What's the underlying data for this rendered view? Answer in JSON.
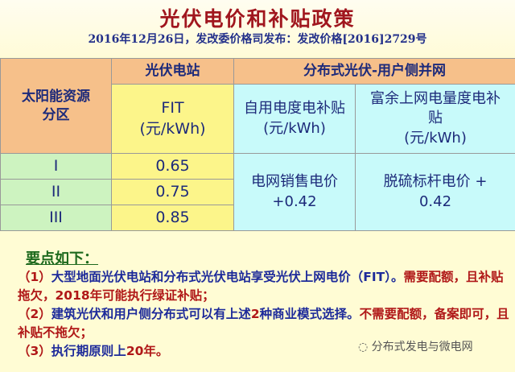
{
  "title": "光伏电价和补贴政策",
  "subtitle": "2016年12月26日，发改委价格司发布：发改价格[2016]2729号",
  "table": {
    "zone_header": "太阳能资源分区",
    "pv_station_header": "光伏电站",
    "distributed_header": "分布式光伏-用户侧并网",
    "fit_header": "FIT",
    "unit": "(元/kWh)",
    "self_use_header": "自用电度电补贴",
    "surplus_header": "富余上网电量度电补贴",
    "rows": [
      {
        "zone": "I",
        "fit": "0.65"
      },
      {
        "zone": "II",
        "fit": "0.75"
      },
      {
        "zone": "III",
        "fit": "0.85"
      }
    ],
    "self_use_value": "电网销售电价+0.42",
    "surplus_value": "脱硫标杆电价 + 0.42"
  },
  "notes": {
    "heading": "要点如下：",
    "n1_num": "（1）",
    "n1_a": "大型地面光伏电站和分布式光伏电站享受光伏上网电价（FIT）。",
    "n1_b": "需要配额，且补贴拖欠，2018年可能执行绿证补贴；",
    "n2_num": "（2）",
    "n2_a": "建筑光伏和用户侧分布式可以有上述",
    "n2_num2": "2",
    "n2_b": "种商业模式选择。",
    "n2_c": "不需要配额，备案即可，且补贴不拖欠；",
    "n3_num": "（3）",
    "n3_a": "执行期原则上",
    "n3_b": "20年。"
  },
  "watermark": "分布式发电与微电网"
}
